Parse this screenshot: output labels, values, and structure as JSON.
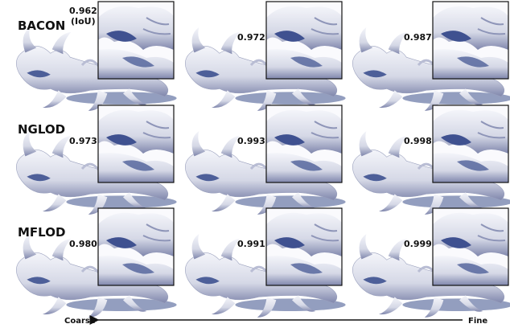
{
  "metric_note": "(IoU)",
  "rows": [
    {
      "method": "BACON",
      "scores": [
        "0.962",
        "0.972",
        "0.987"
      ]
    },
    {
      "method": "NGLOD",
      "scores": [
        "0.973",
        "0.993",
        "0.998"
      ]
    },
    {
      "method": "MFLOD",
      "scores": [
        "0.980",
        "0.991",
        "0.999"
      ]
    }
  ],
  "axis": {
    "start": "Coarse",
    "end": "Fine"
  }
}
